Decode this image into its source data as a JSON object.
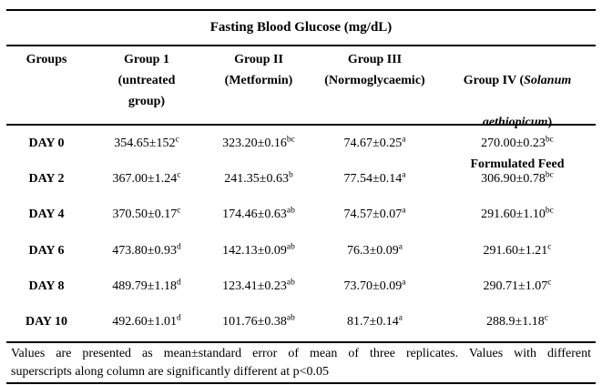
{
  "title": "Fasting Blood Glucose (mg/dL)",
  "header": {
    "groups": "Groups",
    "group1": "Group 1\n(untreated\ngroup)",
    "group2": "Group II\n(Metformin)",
    "group3": "Group III\n(Normoglycaemic)",
    "group4": {
      "l1a": "Group IV (",
      "l1b": "Solanum",
      "l2a": "aethiopicum",
      "l2b": ")",
      "l3": "Formulated Feed"
    }
  },
  "table": {
    "rows": [
      {
        "day": "DAY 0",
        "cells": [
          {
            "v": "354.65±152",
            "s": "c"
          },
          {
            "v": "323.20±0.16",
            "s": "bc"
          },
          {
            "v": "74.67±0.25",
            "s": "a"
          },
          {
            "v": "270.00±0.23",
            "s": "bc"
          }
        ]
      },
      {
        "day": "DAY 2",
        "cells": [
          {
            "v": "367.00±1.24",
            "s": "c"
          },
          {
            "v": "241.35±0.63",
            "s": "b"
          },
          {
            "v": "77.54±0.14",
            "s": "a"
          },
          {
            "v": "306.90±0.78",
            "s": "bc"
          }
        ]
      },
      {
        "day": "DAY 4",
        "cells": [
          {
            "v": "370.50±0.17",
            "s": "c"
          },
          {
            "v": "174.46±0.63",
            "s": "ab"
          },
          {
            "v": "74.57±0.07",
            "s": "a"
          },
          {
            "v": "291.60±1.10",
            "s": "bc"
          }
        ]
      },
      {
        "day": "DAY 6",
        "cells": [
          {
            "v": "473.80±0.93",
            "s": "d"
          },
          {
            "v": "142.13±0.09",
            "s": "ab"
          },
          {
            "v": "76.3±0.09",
            "s": "a"
          },
          {
            "v": "291.60±1.21",
            "s": "c"
          }
        ]
      },
      {
        "day": "DAY 8",
        "cells": [
          {
            "v": "489.79±1.18",
            "s": "d"
          },
          {
            "v": "123.41±0.23",
            "s": "ab"
          },
          {
            "v": "73.70±0.09",
            "s": "a"
          },
          {
            "v": "290.71±1.07",
            "s": "c"
          }
        ]
      },
      {
        "day": "DAY 10",
        "cells": [
          {
            "v": "492.60±1.01",
            "s": "d"
          },
          {
            "v": "101.76±0.38",
            "s": "ab"
          },
          {
            "v": "81.7±0.14",
            "s": "a"
          },
          {
            "v": "288.9±1.18",
            "s": "c"
          }
        ]
      }
    ]
  },
  "footnote": {
    "line1": "Values are presented as mean±standard error of mean of three replicates. Values with different",
    "line2": "superscripts along column are significantly different at p<0.05"
  },
  "colors": {
    "text": "#000000",
    "background": "#ffffff",
    "rule": "#000000"
  }
}
